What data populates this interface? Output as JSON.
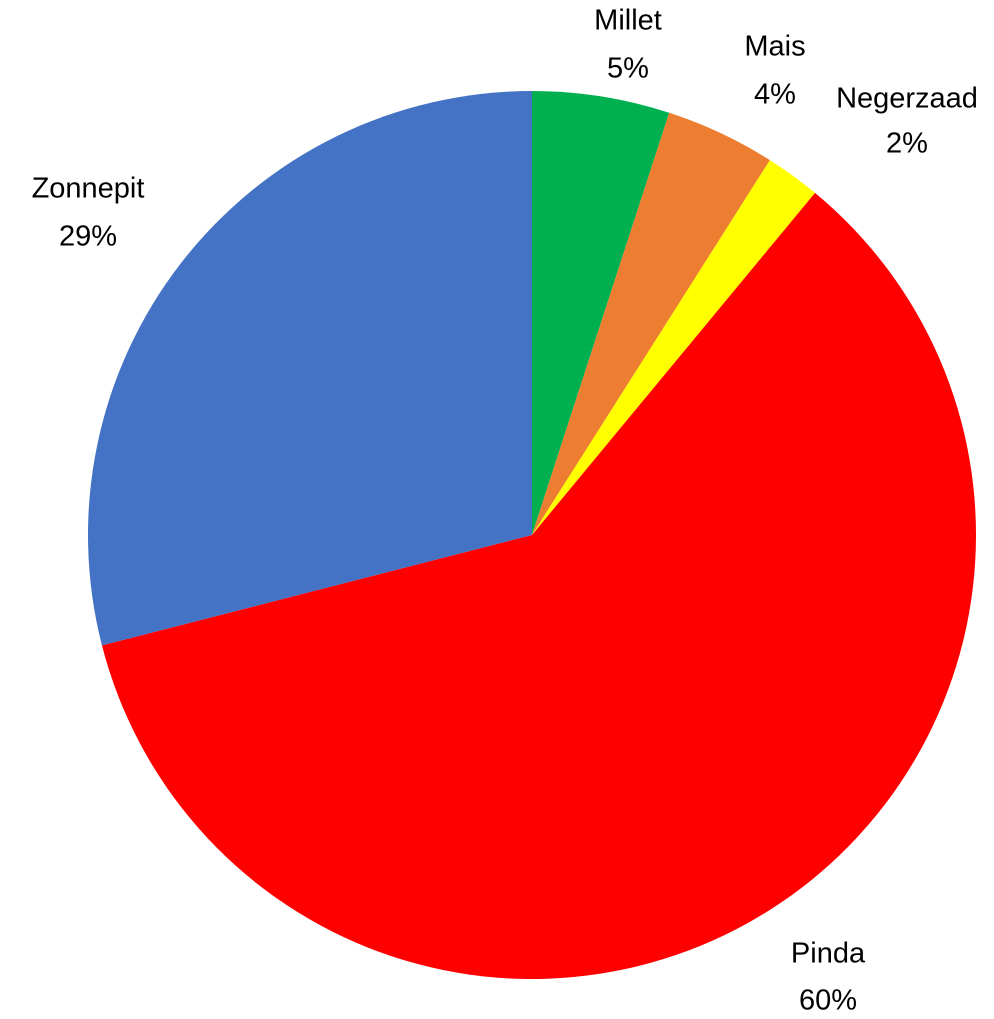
{
  "chart_data": {
    "type": "pie",
    "categories": [
      "Millet",
      "Mais",
      "Negerzaad",
      "Pinda",
      "Zonnepit"
    ],
    "values": [
      5,
      4,
      2,
      60,
      29
    ],
    "value_labels": [
      "5%",
      "4%",
      "2%",
      "60%",
      "29%"
    ],
    "colors": [
      "#00b050",
      "#ed7d31",
      "#ffff00",
      "#ff0000",
      "#4472c4"
    ]
  }
}
